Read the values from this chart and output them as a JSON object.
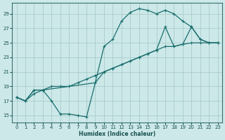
{
  "xlabel": "Humidex (Indice chaleur)",
  "bg_color": "#cce8e8",
  "grid_color": "#aacccc",
  "line_color": "#1a6e6e",
  "xlim": [
    -0.5,
    23.5
  ],
  "ylim": [
    14.0,
    30.5
  ],
  "xticks": [
    0,
    1,
    2,
    3,
    4,
    5,
    6,
    7,
    8,
    9,
    10,
    11,
    12,
    13,
    14,
    15,
    16,
    17,
    18,
    19,
    20,
    21,
    22,
    23
  ],
  "yticks": [
    15,
    17,
    19,
    21,
    23,
    25,
    27,
    29
  ],
  "line1_x": [
    0,
    1,
    2,
    3,
    4,
    5,
    6,
    7,
    8,
    9,
    10,
    11,
    12,
    13,
    14,
    15,
    16,
    17,
    18,
    19,
    20,
    21,
    22,
    23
  ],
  "line1_y": [
    17.5,
    17.0,
    18.0,
    18.5,
    19.0,
    19.0,
    19.0,
    19.5,
    20.0,
    20.5,
    21.0,
    21.5,
    22.0,
    22.5,
    23.0,
    23.5,
    24.0,
    24.5,
    24.5,
    24.8,
    25.0,
    25.0,
    25.0,
    25.0
  ],
  "line2_x": [
    0,
    1,
    2,
    3,
    4,
    5,
    6,
    7,
    8,
    9,
    10,
    11,
    12,
    13,
    14,
    15,
    16,
    17,
    18,
    19,
    20,
    21,
    22,
    23
  ],
  "line2_y": [
    17.5,
    17.0,
    18.5,
    18.5,
    17.0,
    15.2,
    15.2,
    15.0,
    14.8,
    19.5,
    24.5,
    25.5,
    28.0,
    29.2,
    29.7,
    29.5,
    29.0,
    29.5,
    29.0,
    28.0,
    27.2,
    25.5,
    25.0,
    25.0
  ],
  "line3_x": [
    0,
    1,
    2,
    3,
    9,
    10,
    11,
    12,
    13,
    14,
    15,
    16,
    17,
    18,
    19,
    20,
    21,
    22,
    23
  ],
  "line3_y": [
    17.5,
    17.0,
    18.5,
    18.5,
    19.5,
    21.0,
    21.5,
    22.0,
    22.5,
    23.0,
    23.5,
    24.0,
    27.2,
    24.5,
    24.8,
    27.2,
    25.5,
    25.0,
    25.0
  ]
}
